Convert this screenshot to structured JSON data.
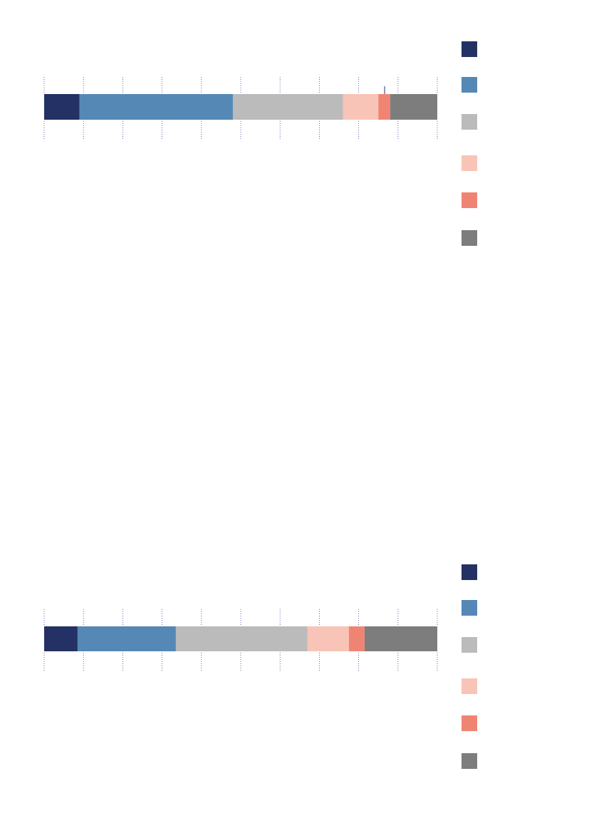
{
  "chart_data": [
    {
      "type": "bar",
      "stacked": true,
      "orientation": "horizontal",
      "grid": true,
      "legend": "right",
      "categories": [
        null
      ],
      "xlim": [
        0,
        100
      ],
      "xticks": [
        0,
        10,
        20,
        30,
        40,
        50,
        60,
        70,
        80,
        90,
        100
      ],
      "series": [
        {
          "color": "#233164",
          "values": [
            9
          ]
        },
        {
          "color": "#5588b5",
          "values": [
            39
          ]
        },
        {
          "color": "#bbbbbb",
          "values": [
            28
          ]
        },
        {
          "color": "#f8c4b7",
          "values": [
            9
          ]
        },
        {
          "color": "#f08473",
          "values": [
            3
          ]
        },
        {
          "color": "#7d7d7d",
          "values": [
            12
          ]
        }
      ]
    },
    {
      "type": "bar",
      "stacked": true,
      "orientation": "horizontal",
      "grid": true,
      "legend": "right",
      "categories": [
        null
      ],
      "xlim": [
        0,
        100
      ],
      "xticks": [
        0,
        10,
        20,
        30,
        40,
        50,
        60,
        70,
        80,
        90,
        100
      ],
      "series": [
        {
          "color": "#233164",
          "values": [
            8.5
          ]
        },
        {
          "color": "#5588b5",
          "values": [
            25
          ]
        },
        {
          "color": "#bbbbbb",
          "values": [
            33.5
          ]
        },
        {
          "color": "#f8c4b7",
          "values": [
            10.5
          ]
        },
        {
          "color": "#f08473",
          "values": [
            4
          ]
        },
        {
          "color": "#7d7d7d",
          "values": [
            18.5
          ]
        }
      ]
    }
  ]
}
